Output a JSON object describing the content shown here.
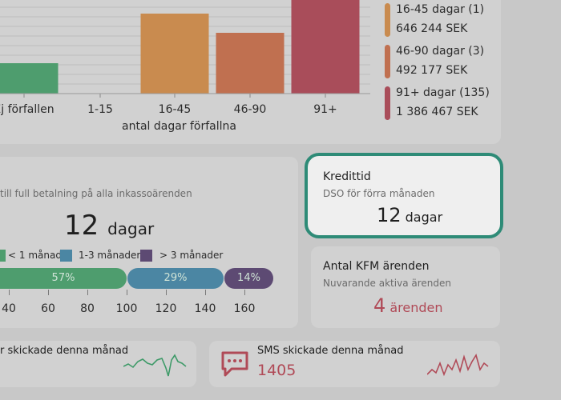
{
  "aging_chart": {
    "xlabel": "antal dagar förfallna",
    "legend": [
      {
        "label": "16-45 dagar (1)",
        "amount": "646 244 SEK",
        "color": "#c98b4f"
      },
      {
        "label": "46-90 dagar (3)",
        "amount": "492 177 SEK",
        "color": "#c07050"
      },
      {
        "label": "91+ dagar (135)",
        "amount": "1 386 467 SEK",
        "color": "#a94d5a"
      }
    ]
  },
  "chart_data": {
    "type": "bar",
    "categories": [
      "Ej förfallen",
      "1-15",
      "16-45",
      "46-90",
      "91+"
    ],
    "values": [
      38,
      0,
      100,
      76,
      172
    ],
    "colors": [
      "#4e9d6e",
      "#4e9d6e",
      "#c98b4f",
      "#c07050",
      "#a94d5a"
    ],
    "xlabel": "antal dagar förfallna",
    "ylabel": "",
    "grid": true
  },
  "payment_time": {
    "subtitle": "till full betalning på alla inkassoärenden",
    "value": "12",
    "unit": "dagar",
    "legend": [
      {
        "label": "< 1 månad",
        "color": "#4e9d6e"
      },
      {
        "label": "1-3 månader",
        "color": "#4b86a3"
      },
      {
        "label": "> 3 månader",
        "color": "#5d4a73"
      }
    ],
    "segments": [
      {
        "label": "57%",
        "value": 57,
        "color": "#4e9d6e"
      },
      {
        "label": "29%",
        "value": 29,
        "color": "#4b86a3"
      },
      {
        "label": "14%",
        "value": 14,
        "color": "#5d4a73"
      }
    ],
    "ticks": [
      "40",
      "60",
      "80",
      "100",
      "120",
      "140",
      "160"
    ]
  },
  "credit_time": {
    "title": "Kredittid",
    "subtitle": "DSO för förra månaden",
    "value": "12",
    "unit": "dagar"
  },
  "kfm": {
    "title": "Antal KFM ärenden",
    "subtitle": "Nuvarande aktiva ärenden",
    "value": "4",
    "unit": "ärenden",
    "accent": "#b04a57"
  },
  "email_card": {
    "title": "r skickade denna månad",
    "sparkline_color": "#3e9a68"
  },
  "sms_card": {
    "title": "SMS skickade denna månad",
    "value": "1405",
    "accent": "#b04a57"
  }
}
